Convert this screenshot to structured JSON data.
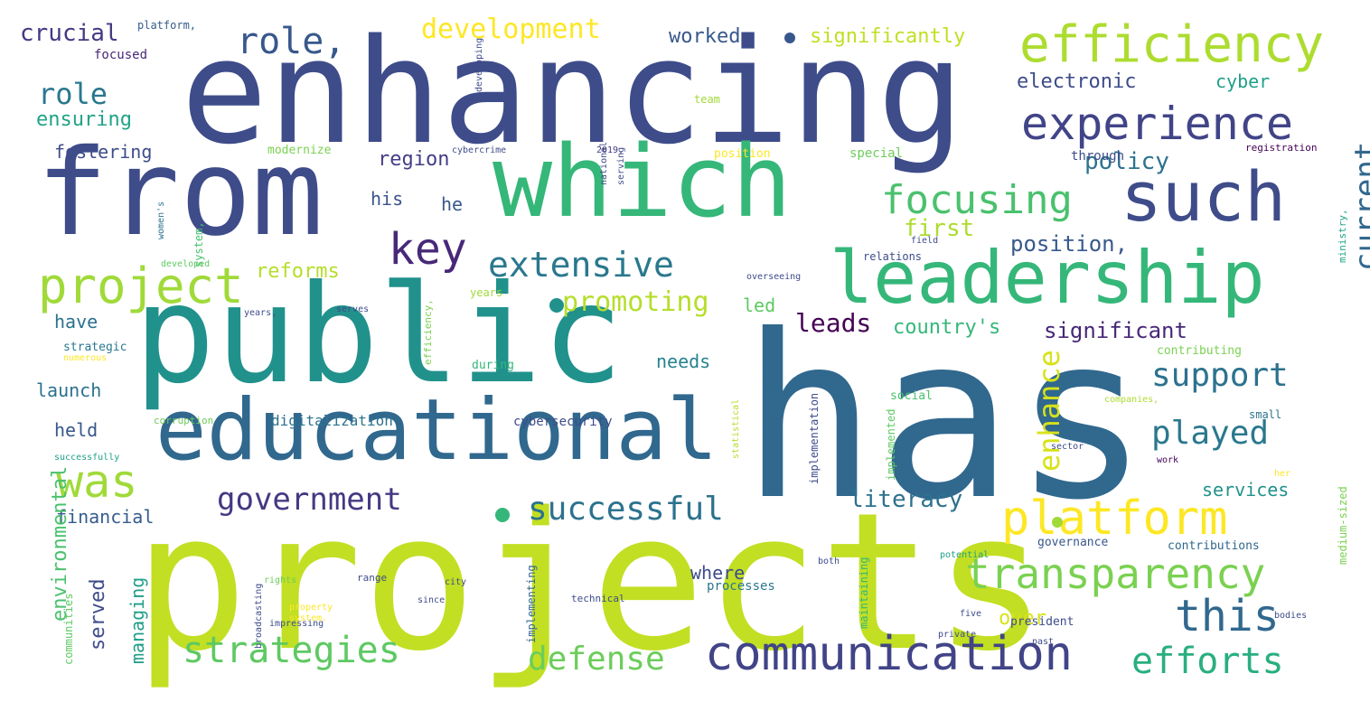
{
  "words": [
    {
      "text": "has",
      "color": "#31688e"
    },
    {
      "text": "projects",
      "color": "#c2df23"
    },
    {
      "text": "enhancing",
      "color": "#3e4c8a"
    },
    {
      "text": "public",
      "color": "#21918c"
    },
    {
      "text": "from",
      "color": "#3e4c8a"
    },
    {
      "text": "which",
      "color": "#35b779"
    },
    {
      "text": "educational",
      "color": "#31688e"
    },
    {
      "text": "leadership",
      "color": "#35b779"
    },
    {
      "text": "such",
      "color": "#3e4c8a"
    },
    {
      "text": "efficiency",
      "color": "#addc30"
    },
    {
      "text": "experience",
      "color": "#414487"
    },
    {
      "text": "communication",
      "color": "#414487"
    },
    {
      "text": "transparency",
      "color": "#7ad151"
    },
    {
      "text": "platform",
      "color": "#fde725"
    },
    {
      "text": "project",
      "color": "#a0da39"
    },
    {
      "text": "focusing",
      "color": "#4ac16d"
    },
    {
      "text": "this",
      "color": "#31688e"
    },
    {
      "text": "was",
      "color": "#a0da39"
    },
    {
      "text": "strategies",
      "color": "#5ec962"
    },
    {
      "text": "efforts",
      "color": "#29af7f"
    },
    {
      "text": "government",
      "color": "#443983"
    },
    {
      "text": "successful",
      "color": "#2c728e"
    },
    {
      "text": "extensive",
      "color": "#2a788e"
    },
    {
      "text": "key",
      "color": "#482878"
    },
    {
      "text": "role,",
      "color": "#38588c"
    },
    {
      "text": "support",
      "color": "#2c728e"
    },
    {
      "text": "played",
      "color": "#2a788e"
    },
    {
      "text": "current",
      "color": "#31688e"
    },
    {
      "text": "defense",
      "color": "#6ccd5a"
    },
    {
      "text": "development",
      "color": "#fde725"
    },
    {
      "text": "role",
      "color": "#2a788e"
    },
    {
      "text": "promoting",
      "color": "#b5de2b"
    },
    {
      "text": "enhance",
      "color": "#d8e219"
    },
    {
      "text": "literacy",
      "color": "#2c728e"
    },
    {
      "text": "policy",
      "color": "#2c728e"
    },
    {
      "text": "leads",
      "color": "#440154"
    },
    {
      "text": "country's",
      "color": "#35b779"
    },
    {
      "text": "significant",
      "color": "#482878"
    },
    {
      "text": "position,",
      "color": "#38588c"
    },
    {
      "text": "first",
      "color": "#addc30"
    },
    {
      "text": "crucial",
      "color": "#443983"
    },
    {
      "text": "worked",
      "color": "#38588c"
    },
    {
      "text": "significantly",
      "color": "#c2df23"
    },
    {
      "text": "electronic",
      "color": "#3e4c8a"
    },
    {
      "text": "cyber",
      "color": "#1fa088"
    },
    {
      "text": "ensuring",
      "color": "#20a486"
    },
    {
      "text": "fostering",
      "color": "#3e4c8a"
    },
    {
      "text": "region",
      "color": "#433e85"
    },
    {
      "text": "reforms",
      "color": "#b5de2b"
    },
    {
      "text": "have",
      "color": "#2c728e"
    },
    {
      "text": "launch",
      "color": "#2c728e"
    },
    {
      "text": "held",
      "color": "#38588c"
    },
    {
      "text": "financial",
      "color": "#365d8d"
    },
    {
      "text": "served",
      "color": "#3e4c8a"
    },
    {
      "text": "managing",
      "color": "#1f9e89"
    },
    {
      "text": "environmental",
      "color": "#4ac16d"
    },
    {
      "text": "needs",
      "color": "#25838e"
    },
    {
      "text": "led",
      "color": "#5ec962"
    },
    {
      "text": "where",
      "color": "#3e4c8a"
    },
    {
      "text": "over",
      "color": "#d8e219"
    },
    {
      "text": "services",
      "color": "#21918c"
    },
    {
      "text": "his",
      "color": "#3b528b"
    },
    {
      "text": "he",
      "color": "#38588c"
    },
    {
      "text": "through",
      "color": "#3e4c8a"
    },
    {
      "text": "digitalization",
      "color": "#2c728e"
    },
    {
      "text": "cybersecurity",
      "color": "#3e4c8a"
    },
    {
      "text": "processes",
      "color": "#2a788e"
    },
    {
      "text": "governance",
      "color": "#38588c"
    },
    {
      "text": "contributions",
      "color": "#31688e"
    },
    {
      "text": "president",
      "color": "#3e4c8a"
    },
    {
      "text": "modernize",
      "color": "#7ad151"
    },
    {
      "text": "special",
      "color": "#6ccd5a"
    },
    {
      "text": "position",
      "color": "#fde725"
    },
    {
      "text": "registration",
      "color": "#440154"
    },
    {
      "text": "2019,",
      "color": "#443983"
    },
    {
      "text": "cybercrime",
      "color": "#3e4c8a"
    },
    {
      "text": "platform,",
      "color": "#365d8d"
    },
    {
      "text": "focused",
      "color": "#482878"
    },
    {
      "text": "team",
      "color": "#a0da39"
    },
    {
      "text": "relations",
      "color": "#3e4c8a"
    },
    {
      "text": "years",
      "color": "#a0da39"
    },
    {
      "text": "during",
      "color": "#35b779"
    },
    {
      "text": "social",
      "color": "#4ac16d"
    },
    {
      "text": "small",
      "color": "#2c728e"
    },
    {
      "text": "contributing",
      "color": "#7ad151"
    },
    {
      "text": "strategic",
      "color": "#2a788e"
    },
    {
      "text": "companies,",
      "color": "#addc30"
    },
    {
      "text": "corruption",
      "color": "#6ccd5a"
    },
    {
      "text": "successfully",
      "color": "#1fa088"
    },
    {
      "text": "communities",
      "color": "#5ec962"
    },
    {
      "text": "implementation",
      "color": "#3e4c8a"
    },
    {
      "text": "implemented",
      "color": "#5ec962"
    },
    {
      "text": "maintaining",
      "color": "#35b779"
    },
    {
      "text": "implementing",
      "color": "#31688e"
    },
    {
      "text": "medium-sized",
      "color": "#7ad151"
    },
    {
      "text": "ministry,",
      "color": "#20a486"
    },
    {
      "text": "system,",
      "color": "#4ac16d"
    },
    {
      "text": "efficiency,",
      "color": "#7ad151"
    },
    {
      "text": "overseeing",
      "color": "#3e4c8a"
    },
    {
      "text": "developed",
      "color": "#5ec962"
    },
    {
      "text": "years,",
      "color": "#3e4c8a"
    },
    {
      "text": "serves",
      "color": "#3e4c8a"
    },
    {
      "text": "since",
      "color": "#3e4c8a"
    },
    {
      "text": "range",
      "color": "#3e4c8a"
    },
    {
      "text": "rights",
      "color": "#6ccd5a"
    },
    {
      "text": "impressing",
      "color": "#3e4c8a"
    },
    {
      "text": "property",
      "color": "#fde725"
    },
    {
      "text": "system.",
      "color": "#fde725"
    },
    {
      "text": "technical",
      "color": "#3e4c8a"
    },
    {
      "text": "city",
      "color": "#3e4c8a"
    },
    {
      "text": "potential",
      "color": "#1fa088"
    },
    {
      "text": "private",
      "color": "#3e4c8a"
    },
    {
      "text": "past",
      "color": "#3e4c8a"
    },
    {
      "text": "bodies",
      "color": "#3e4c8a"
    },
    {
      "text": "five",
      "color": "#3e4c8a"
    },
    {
      "text": "sector",
      "color": "#3e4c8a"
    },
    {
      "text": "both",
      "color": "#3e4c8a"
    },
    {
      "text": "work",
      "color": "#440154"
    },
    {
      "text": "her",
      "color": "#fde725"
    },
    {
      "text": "numerous",
      "color": "#fde725"
    },
    {
      "text": "women's",
      "color": "#2c728e"
    },
    {
      "text": "broadcasting",
      "color": "#3e4c8a"
    },
    {
      "text": "statistical",
      "color": "#b5de2b"
    },
    {
      "text": "field",
      "color": "#3e4c8a"
    },
    {
      "text": "developing",
      "color": "#3e4c8a"
    },
    {
      "text": "national",
      "color": "#3e4c8a"
    },
    {
      "text": "serving",
      "color": "#3e4c8a"
    }
  ],
  "dots": [
    {
      "color": "#21918c"
    },
    {
      "color": "#35b779"
    },
    {
      "color": "#a0da39"
    },
    {
      "color": "#38588c"
    }
  ]
}
